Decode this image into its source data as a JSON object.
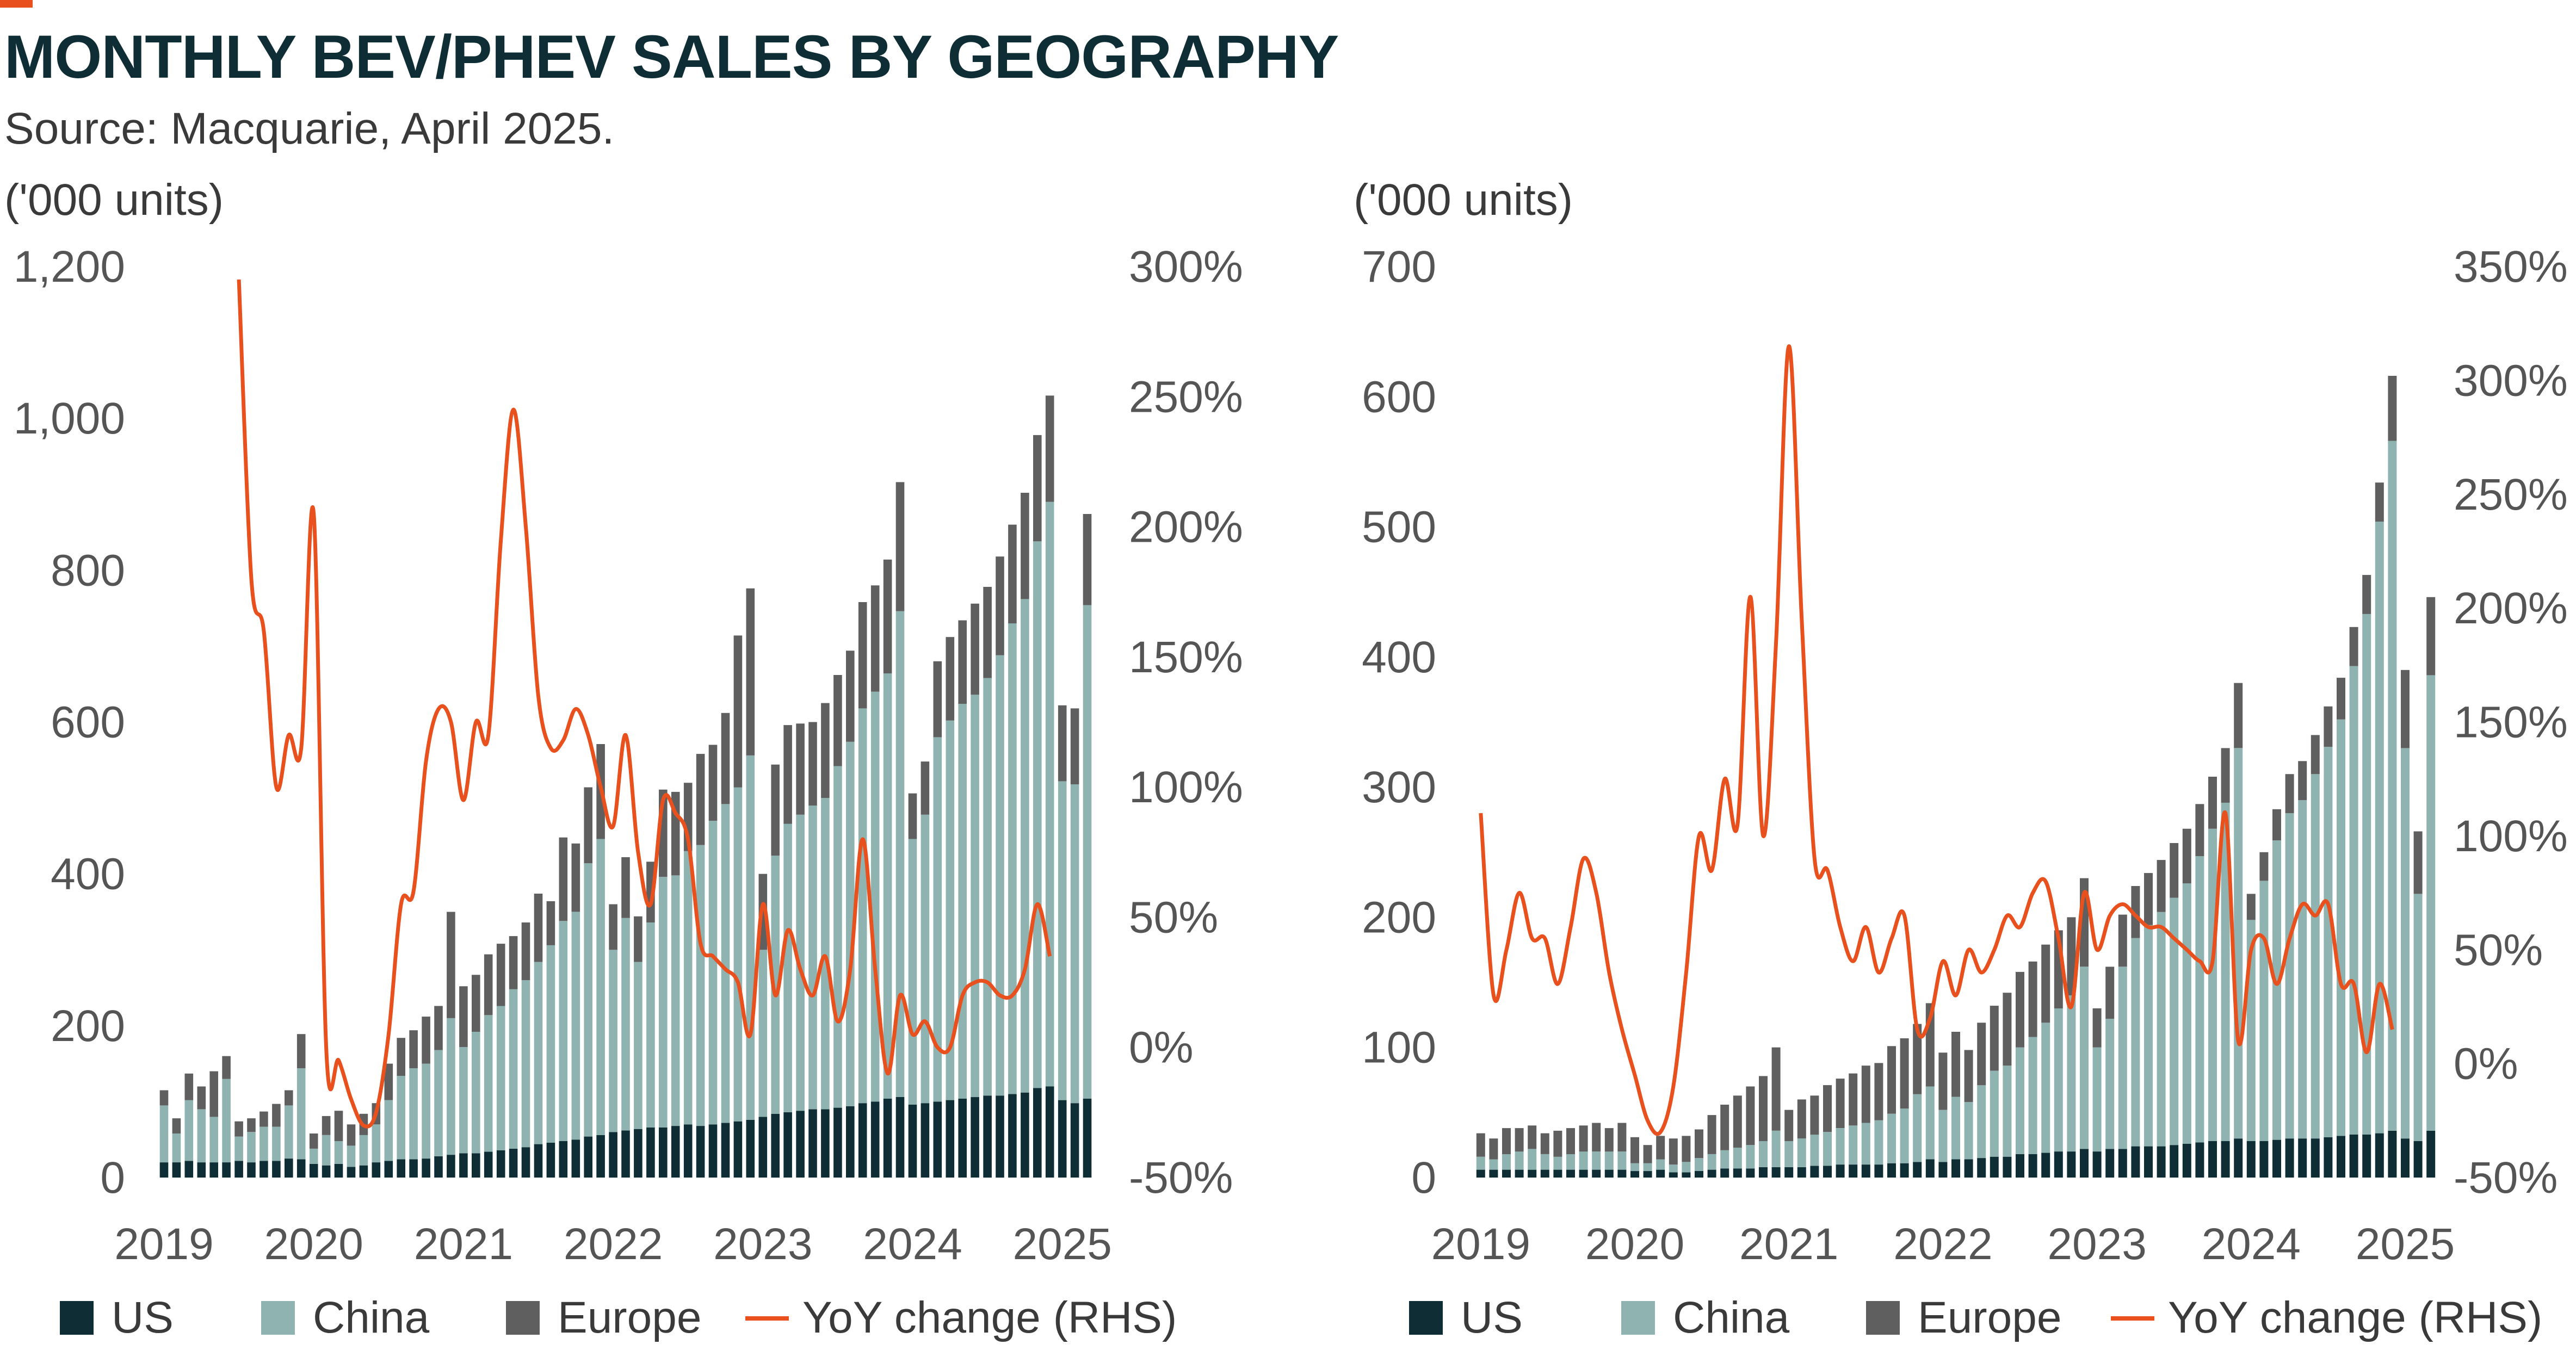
{
  "page": {
    "title": "MONTHLY BEV/PHEV SALES BY GEOGRAPHY",
    "subtitle": "Source: Macquarie, April 2025."
  },
  "colors": {
    "accent": "#e8501e",
    "us": "#0f2d35",
    "china": "#8fb3b0",
    "europe": "#5f5f5f",
    "yoy": "#e8501e",
    "axis_text": "#555555",
    "title": "#0f2d35"
  },
  "chart_data": [
    {
      "type": "bar",
      "stacked": true,
      "unit_label": "('000 units)",
      "ylim": [
        0,
        1200
      ],
      "yticks": [
        0,
        200,
        400,
        600,
        800,
        1000,
        1200
      ],
      "ytick_labels": [
        "0",
        "200",
        "400",
        "600",
        "800",
        "1,000",
        "1,200"
      ],
      "y2lim": [
        -50,
        300
      ],
      "y2ticks": [
        -50,
        0,
        50,
        100,
        150,
        200,
        250,
        300
      ],
      "y2tick_labels": [
        "-50%",
        "0%",
        "50%",
        "100%",
        "150%",
        "200%",
        "250%",
        "300%"
      ],
      "x_labels": [
        "2019",
        "2020",
        "2021",
        "2022",
        "2023",
        "2024",
        "2025"
      ],
      "legend_position": "bottom",
      "series": [
        {
          "name": "US",
          "kind": "bar",
          "values": [
            20,
            20,
            22,
            20,
            20,
            20,
            22,
            20,
            22,
            22,
            25,
            24,
            18,
            16,
            18,
            14,
            16,
            20,
            22,
            24,
            24,
            25,
            28,
            30,
            32,
            32,
            34,
            36,
            38,
            40,
            44,
            46,
            48,
            50,
            54,
            56,
            60,
            62,
            64,
            66,
            66,
            68,
            70,
            68,
            70,
            72,
            74,
            76,
            80,
            84,
            86,
            88,
            90,
            90,
            92,
            94,
            98,
            100,
            104,
            106,
            96,
            98,
            100,
            102,
            104,
            106,
            108,
            108,
            110,
            112,
            118,
            120,
            102,
            98,
            104
          ]
        },
        {
          "name": "China",
          "kind": "bar",
          "values": [
            75,
            38,
            80,
            70,
            60,
            110,
            32,
            40,
            45,
            45,
            70,
            120,
            20,
            40,
            30,
            28,
            40,
            50,
            80,
            110,
            120,
            125,
            140,
            180,
            140,
            160,
            180,
            190,
            210,
            220,
            240,
            260,
            290,
            300,
            360,
            390,
            240,
            280,
            220,
            270,
            330,
            330,
            360,
            370,
            400,
            420,
            440,
            480,
            220,
            340,
            380,
            390,
            400,
            410,
            450,
            480,
            520,
            540,
            560,
            640,
            350,
            380,
            480,
            500,
            520,
            530,
            550,
            580,
            620,
            650,
            720,
            770,
            420,
            420,
            650
          ]
        },
        {
          "name": "Europe",
          "kind": "bar",
          "values": [
            20,
            20,
            35,
            30,
            60,
            30,
            20,
            18,
            20,
            30,
            20,
            45,
            20,
            25,
            40,
            28,
            28,
            28,
            48,
            50,
            50,
            62,
            58,
            140,
            80,
            75,
            80,
            82,
            70,
            76,
            90,
            58,
            110,
            90,
            100,
            125,
            60,
            80,
            60,
            80,
            115,
            110,
            90,
            120,
            100,
            120,
            200,
            220,
            100,
            120,
            130,
            120,
            110,
            125,
            120,
            120,
            140,
            140,
            150,
            170,
            60,
            70,
            100,
            110,
            110,
            120,
            120,
            130,
            130,
            140,
            140,
            140,
            100,
            100,
            120
          ]
        },
        {
          "name": "YoY change (RHS)",
          "kind": "line",
          "values": [
            null,
            null,
            null,
            null,
            null,
            null,
            295,
            180,
            160,
            100,
            120,
            115,
            205,
            0,
            -5,
            -20,
            -30,
            -25,
            5,
            55,
            60,
            110,
            130,
            125,
            95,
            125,
            120,
            195,
            245,
            200,
            135,
            115,
            118,
            130,
            120,
            100,
            85,
            120,
            75,
            55,
            95,
            90,
            80,
            40,
            35,
            30,
            25,
            5,
            55,
            20,
            45,
            30,
            20,
            35,
            10,
            30,
            80,
            30,
            -10,
            20,
            5,
            10,
            0,
            0,
            20,
            25,
            25,
            20,
            20,
            30,
            55,
            35
          ]
        }
      ]
    },
    {
      "type": "bar",
      "stacked": true,
      "unit_label": "('000 units)",
      "ylim": [
        0,
        700
      ],
      "yticks": [
        0,
        100,
        200,
        300,
        400,
        500,
        600,
        700
      ],
      "ytick_labels": [
        "0",
        "100",
        "200",
        "300",
        "400",
        "500",
        "600",
        "700"
      ],
      "y2lim": [
        -50,
        350
      ],
      "y2ticks": [
        -50,
        0,
        50,
        100,
        150,
        200,
        250,
        300,
        350
      ],
      "y2tick_labels": [
        "-50%",
        "0%",
        "50%",
        "100%",
        "150%",
        "200%",
        "250%",
        "300%",
        "350%"
      ],
      "x_labels": [
        "2019",
        "2020",
        "2021",
        "2022",
        "2023",
        "2024",
        "2025"
      ],
      "legend_position": "bottom",
      "series": [
        {
          "name": "US",
          "kind": "bar",
          "values": [
            6,
            6,
            6,
            6,
            6,
            6,
            6,
            6,
            6,
            6,
            6,
            6,
            5,
            5,
            6,
            4,
            4,
            5,
            6,
            7,
            7,
            7,
            8,
            8,
            8,
            8,
            9,
            9,
            10,
            10,
            10,
            10,
            11,
            11,
            12,
            14,
            12,
            14,
            14,
            15,
            16,
            16,
            18,
            18,
            19,
            20,
            20,
            22,
            20,
            22,
            22,
            24,
            24,
            24,
            25,
            26,
            27,
            28,
            28,
            30,
            28,
            28,
            29,
            30,
            30,
            30,
            31,
            32,
            33,
            33,
            34,
            36,
            30,
            28,
            36
          ]
        },
        {
          "name": "China",
          "kind": "bar",
          "values": [
            10,
            8,
            12,
            14,
            16,
            12,
            10,
            12,
            14,
            14,
            14,
            14,
            6,
            6,
            8,
            6,
            8,
            10,
            12,
            14,
            16,
            18,
            20,
            28,
            20,
            22,
            24,
            26,
            28,
            30,
            32,
            34,
            38,
            42,
            52,
            56,
            40,
            48,
            44,
            56,
            66,
            70,
            82,
            90,
            100,
            110,
            120,
            140,
            80,
            100,
            140,
            160,
            170,
            180,
            190,
            200,
            220,
            240,
            260,
            300,
            170,
            200,
            230,
            250,
            260,
            280,
            300,
            320,
            360,
            400,
            470,
            530,
            300,
            190,
            350
          ]
        },
        {
          "name": "Europe",
          "kind": "bar",
          "values": [
            18,
            16,
            20,
            18,
            18,
            16,
            20,
            20,
            20,
            22,
            18,
            22,
            20,
            14,
            18,
            20,
            20,
            22,
            30,
            35,
            40,
            45,
            50,
            64,
            24,
            30,
            30,
            36,
            38,
            40,
            44,
            44,
            52,
            54,
            54,
            64,
            44,
            50,
            40,
            48,
            50,
            56,
            58,
            58,
            60,
            60,
            60,
            68,
            30,
            40,
            40,
            40,
            40,
            40,
            42,
            42,
            40,
            40,
            42,
            50,
            20,
            22,
            24,
            30,
            30,
            30,
            31,
            32,
            30,
            30,
            30,
            50,
            60,
            48,
            60
          ]
        },
        {
          "name": "YoY change (RHS)",
          "kind": "line",
          "values": [
            110,
            30,
            50,
            75,
            55,
            55,
            35,
            60,
            90,
            75,
            40,
            15,
            -5,
            -25,
            -30,
            -10,
            40,
            100,
            85,
            125,
            105,
            205,
            100,
            185,
            315,
            195,
            90,
            85,
            60,
            45,
            60,
            40,
            55,
            65,
            15,
            20,
            45,
            30,
            50,
            40,
            50,
            65,
            60,
            75,
            80,
            55,
            25,
            75,
            50,
            65,
            70,
            65,
            60,
            60,
            55,
            50,
            45,
            45,
            110,
            10,
            50,
            55,
            35,
            55,
            70,
            65,
            70,
            35,
            35,
            5,
            35,
            15
          ]
        }
      ]
    }
  ],
  "legend": {
    "items": [
      {
        "name": "US"
      },
      {
        "name": "China"
      },
      {
        "name": "Europe"
      },
      {
        "name": "YoY change (RHS)"
      }
    ]
  }
}
